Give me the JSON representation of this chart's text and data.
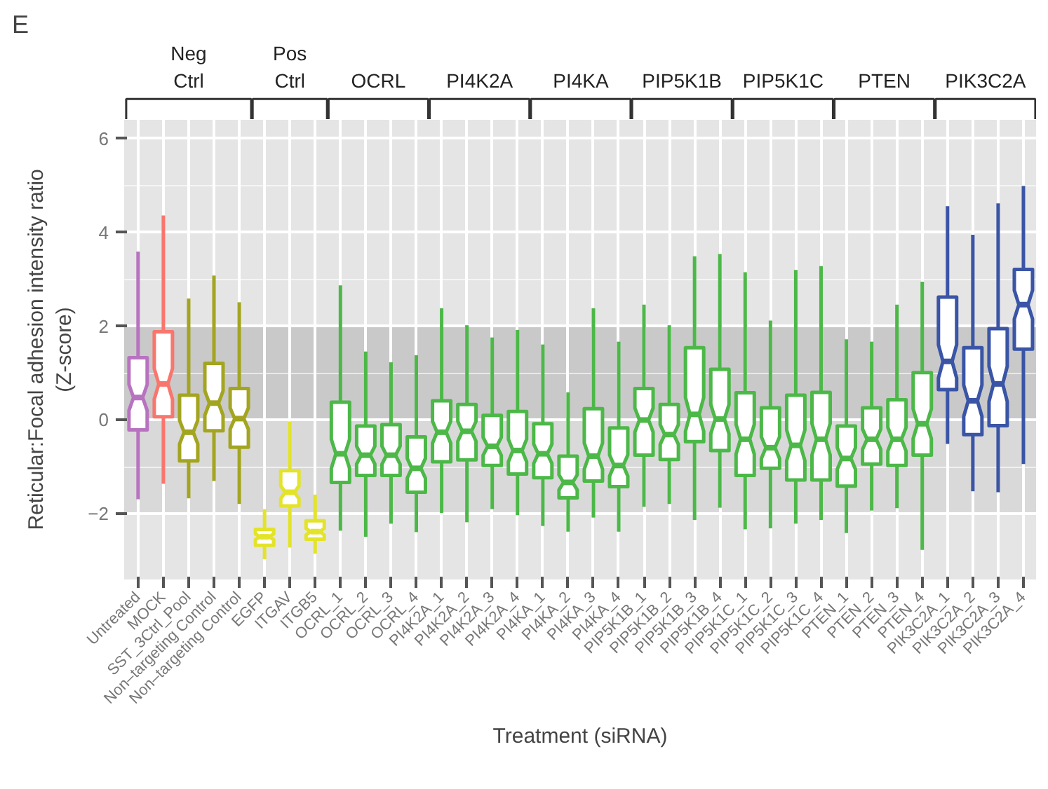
{
  "chart_data": {
    "type": "box",
    "title": "E",
    "xlabel": "Treatment (siRNA)",
    "ylabel": "Reticular:Focal adhesion intensity ratio\n(Z-score)",
    "categories": [
      "Untreated",
      "MOCK",
      "SST_3Ctrl_Pool",
      "Non–targeting Control",
      "Non–targeting Control",
      "EGFP",
      "ITGAV",
      "ITGB5",
      "OCRL_1",
      "OCRL_2",
      "OCRL_3",
      "OCRL_4",
      "PI4K2A_1",
      "PI4K2A_2",
      "PI4K2A_3",
      "PI4K2A_4",
      "PI4KA_1",
      "PI4KA_2",
      "PI4KA_3",
      "PI4KA_4",
      "PIP5K1B_1",
      "PIP5K1B_2",
      "PIP5K1B_3",
      "PIP5K1B_4",
      "PIP5K1C_1",
      "PIP5K1C_2",
      "PIP5K1C_3",
      "PIP5K1C_4",
      "PTEN_1",
      "PTEN_2",
      "PTEN_3",
      "PTEN_4",
      "PIK3C2A_1",
      "PIK3C2A_2",
      "PIK3C2A_3",
      "PIK3C2A_4"
    ],
    "ylim": [
      -3.4,
      6.4
    ],
    "yticks": [
      -2,
      0,
      2,
      4,
      6
    ],
    "grid": true,
    "annotations": [
      "Neg\nCtrl",
      "Pos\nCtrl",
      "OCRL",
      "PI4K2A",
      "PI4KA",
      "PIP5K1B",
      "PIP5K1C",
      "PTEN",
      "PIK3C2A"
    ],
    "bands": [
      {
        "axis": "y",
        "from": 0,
        "to": 2,
        "color": "#c9c9c9"
      },
      {
        "axis": "y",
        "from": -2,
        "to": 0,
        "color": "#d9d9d9"
      }
    ],
    "series": [
      {
        "colors": [
          "#b873c0",
          "#f8766d",
          "#a3a520",
          "#a3a520",
          "#a3a520",
          null,
          null,
          null,
          null,
          null,
          null,
          null,
          null,
          null,
          null,
          null,
          null,
          null,
          null,
          null,
          null,
          null,
          null,
          null,
          null,
          null,
          null,
          null,
          null,
          null,
          null,
          null,
          null,
          null,
          null,
          null
        ],
        "boxes": [
          {
            "low": -1.69,
            "q1": -0.21,
            "median": 0.48,
            "q3": 1.33,
            "high": 3.59
          },
          {
            "low": -1.36,
            "q1": 0.07,
            "median": 0.77,
            "q3": 1.88,
            "high": 4.36
          },
          {
            "low": -1.67,
            "q1": -0.87,
            "median": -0.26,
            "q3": 0.53,
            "high": 2.59
          },
          {
            "low": -1.3,
            "q1": -0.23,
            "median": 0.36,
            "q3": 1.21,
            "high": 3.08
          },
          {
            "low": -1.79,
            "q1": -0.58,
            "median": 0.03,
            "q3": 0.67,
            "high": 2.51
          },
          null,
          null,
          null,
          null,
          null,
          null,
          null,
          null,
          null,
          null,
          null,
          null,
          null,
          null,
          null,
          null,
          null,
          null,
          null,
          null,
          null,
          null,
          null,
          null,
          null,
          null,
          null,
          null,
          null,
          null,
          null
        ]
      },
      {
        "color": "#e3e32a",
        "boxes": [
          null,
          null,
          null,
          null,
          null,
          {
            "low": -2.97,
            "q1": -2.67,
            "median": -2.49,
            "q3": -2.33,
            "high": -1.9
          },
          {
            "low": -2.72,
            "q1": -1.83,
            "median": -1.54,
            "q3": -1.08,
            "high": -0.03
          },
          {
            "low": -2.85,
            "q1": -2.54,
            "median": -2.38,
            "q3": -2.15,
            "high": -1.59
          },
          null,
          null,
          null,
          null,
          null,
          null,
          null,
          null,
          null,
          null,
          null,
          null,
          null,
          null,
          null,
          null,
          null,
          null,
          null,
          null,
          null,
          null,
          null,
          null,
          null,
          null,
          null,
          null
        ]
      },
      {
        "color": "#4cb848",
        "boxes": [
          null,
          null,
          null,
          null,
          null,
          null,
          null,
          null,
          {
            "low": -2.36,
            "q1": -1.33,
            "median": -0.72,
            "q3": 0.38,
            "high": 2.87
          },
          {
            "low": -2.49,
            "q1": -1.18,
            "median": -0.75,
            "q3": -0.13,
            "high": 1.46
          },
          {
            "low": -2.21,
            "q1": -1.18,
            "median": -0.75,
            "q3": -0.1,
            "high": 1.23
          },
          {
            "low": -2.39,
            "q1": -1.54,
            "median": -1.03,
            "q3": -0.36,
            "high": 1.38
          },
          null,
          null,
          null,
          null,
          null,
          null,
          null,
          null,
          null,
          null,
          null,
          null,
          null,
          null,
          null,
          null,
          null,
          null,
          null,
          null,
          null,
          null,
          null,
          null
        ]
      },
      {
        "color": "#4cb848",
        "boxes": [
          null,
          null,
          null,
          null,
          null,
          null,
          null,
          null,
          null,
          null,
          null,
          null,
          {
            "low": -1.98,
            "q1": -0.89,
            "median": -0.26,
            "q3": 0.41,
            "high": 2.38
          },
          {
            "low": -2.18,
            "q1": -0.85,
            "median": -0.24,
            "q3": 0.33,
            "high": 2.02
          },
          {
            "low": -1.9,
            "q1": -0.97,
            "median": -0.56,
            "q3": 0.1,
            "high": 1.76
          },
          {
            "low": -2.03,
            "q1": -1.15,
            "median": -0.65,
            "q3": 0.18,
            "high": 1.92
          },
          null,
          null,
          null,
          null,
          null,
          null,
          null,
          null,
          null,
          null,
          null,
          null,
          null,
          null,
          null,
          null,
          null,
          null,
          null,
          null
        ]
      },
      {
        "color": "#4cb848",
        "boxes": [
          null,
          null,
          null,
          null,
          null,
          null,
          null,
          null,
          null,
          null,
          null,
          null,
          null,
          null,
          null,
          null,
          {
            "low": -2.26,
            "q1": -1.23,
            "median": -0.72,
            "q3": -0.08,
            "high": 1.61
          },
          {
            "low": -2.38,
            "q1": -1.66,
            "median": -1.33,
            "q3": -0.77,
            "high": 0.59
          },
          {
            "low": -2.08,
            "q1": -1.3,
            "median": -0.77,
            "q3": 0.24,
            "high": 2.38
          },
          {
            "low": -2.38,
            "q1": -1.42,
            "median": -0.97,
            "q3": -0.17,
            "high": 1.67
          },
          null,
          null,
          null,
          null,
          null,
          null,
          null,
          null,
          null,
          null,
          null,
          null,
          null,
          null,
          null,
          null
        ]
      },
      {
        "color": "#4cb848",
        "boxes": [
          null,
          null,
          null,
          null,
          null,
          null,
          null,
          null,
          null,
          null,
          null,
          null,
          null,
          null,
          null,
          null,
          null,
          null,
          null,
          null,
          {
            "low": -1.85,
            "q1": -0.75,
            "median": 0.0,
            "q3": 0.67,
            "high": 2.46
          },
          {
            "low": -1.79,
            "q1": -0.84,
            "median": -0.31,
            "q3": 0.33,
            "high": 2.02
          },
          {
            "low": -2.13,
            "q1": -0.46,
            "median": 0.12,
            "q3": 1.54,
            "high": 3.49
          },
          {
            "low": -1.87,
            "q1": -0.65,
            "median": 0.02,
            "q3": 1.08,
            "high": 3.54
          },
          null,
          null,
          null,
          null,
          null,
          null,
          null,
          null,
          null,
          null,
          null,
          null
        ]
      },
      {
        "color": "#4cb848",
        "boxes": [
          null,
          null,
          null,
          null,
          null,
          null,
          null,
          null,
          null,
          null,
          null,
          null,
          null,
          null,
          null,
          null,
          null,
          null,
          null,
          null,
          null,
          null,
          null,
          null,
          {
            "low": -2.33,
            "q1": -1.18,
            "median": -0.41,
            "q3": 0.58,
            "high": 3.15
          },
          {
            "low": -2.31,
            "q1": -1.03,
            "median": -0.59,
            "q3": 0.26,
            "high": 2.12
          },
          {
            "low": -2.21,
            "q1": -1.28,
            "median": -0.54,
            "q3": 0.53,
            "high": 3.2
          },
          {
            "low": -2.13,
            "q1": -1.28,
            "median": -0.41,
            "q3": 0.59,
            "high": 3.28
          },
          null,
          null,
          null,
          null,
          null,
          null,
          null,
          null
        ]
      },
      {
        "color": "#4cb848",
        "boxes": [
          null,
          null,
          null,
          null,
          null,
          null,
          null,
          null,
          null,
          null,
          null,
          null,
          null,
          null,
          null,
          null,
          null,
          null,
          null,
          null,
          null,
          null,
          null,
          null,
          null,
          null,
          null,
          null,
          {
            "low": -2.41,
            "q1": -1.41,
            "median": -0.82,
            "q3": -0.13,
            "high": 1.72
          },
          {
            "low": -1.93,
            "q1": -0.94,
            "median": -0.41,
            "q3": 0.26,
            "high": 1.67
          },
          {
            "low": -1.88,
            "q1": -0.97,
            "median": -0.41,
            "q3": 0.43,
            "high": 2.46
          },
          {
            "low": -2.77,
            "q1": -0.75,
            "median": -0.08,
            "q3": 1.01,
            "high": 2.95
          },
          null,
          null,
          null,
          null
        ]
      },
      {
        "color": "#3a55a6",
        "boxes": [
          null,
          null,
          null,
          null,
          null,
          null,
          null,
          null,
          null,
          null,
          null,
          null,
          null,
          null,
          null,
          null,
          null,
          null,
          null,
          null,
          null,
          null,
          null,
          null,
          null,
          null,
          null,
          null,
          null,
          null,
          null,
          null,
          {
            "low": -0.51,
            "q1": 0.65,
            "median": 1.25,
            "q3": 2.62,
            "high": 4.56
          },
          {
            "low": -1.52,
            "q1": -0.31,
            "median": 0.41,
            "q3": 1.54,
            "high": 3.95
          },
          {
            "low": -1.54,
            "q1": -0.12,
            "median": 0.77,
            "q3": 1.95,
            "high": 4.62
          },
          {
            "low": -0.94,
            "q1": 1.51,
            "median": 2.46,
            "q3": 3.21,
            "high": 4.99
          }
        ]
      }
    ]
  }
}
